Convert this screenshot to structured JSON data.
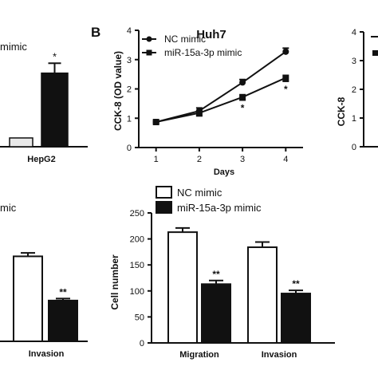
{
  "panel_letters": {
    "b": "B"
  },
  "cut_text": {
    "mimic_top": "mimic",
    "mimic_mid": "mic"
  },
  "chart_data": [
    {
      "id": "a-hepg2-fragment",
      "type": "bar",
      "categories": [
        "HepG2"
      ],
      "series": [
        {
          "name": "NC mimic",
          "values": [
            0.16
          ],
          "fill": "#e9e9e9"
        },
        {
          "name": "miR-15a-3p mimic",
          "values": [
            1.34
          ],
          "error": [
            0.18
          ],
          "fill": "#111111"
        }
      ],
      "ymax": 1.8,
      "annotations": [
        "*"
      ]
    },
    {
      "id": "b-huh7-cck8",
      "type": "line",
      "title": "Huh7",
      "xlabel": "Days",
      "ylabel": "CCK-8 (OD value)",
      "x": [
        1,
        2,
        3,
        4
      ],
      "xlim": [
        0.6,
        4.4
      ],
      "ylim": [
        0,
        4
      ],
      "yticks": [
        "0",
        "1",
        "2",
        "3",
        "4"
      ],
      "series": [
        {
          "name": "NC mimic",
          "marker": "circle",
          "values": [
            0.87,
            1.25,
            2.22,
            3.27
          ],
          "error": [
            0.04,
            0.1,
            0.1,
            0.12
          ]
        },
        {
          "name": "miR-15a-3p mimic",
          "marker": "square",
          "values": [
            0.87,
            1.18,
            1.72,
            2.38
          ],
          "error": [
            0.04,
            0.1,
            0.1,
            0.12
          ]
        }
      ],
      "annotations": [
        {
          "x": 3,
          "text": "*"
        },
        {
          "x": 4,
          "text": "*"
        }
      ]
    },
    {
      "id": "c-right-fragment",
      "type": "line",
      "ylabel": "CCK-8",
      "yticks": [
        "0",
        "1",
        "2",
        "3",
        "4"
      ]
    },
    {
      "id": "d-invasion-fragment",
      "type": "bar",
      "xlabel": "Invasion",
      "series": [
        {
          "name": "NC mimic",
          "values": [
            173
          ],
          "error": [
            7
          ],
          "fill": "#ffffff"
        },
        {
          "name": "miR-15a-3p mimic",
          "values": [
            83
          ],
          "error": [
            4
          ],
          "fill": "#111111"
        }
      ],
      "ylim": [
        0,
        250
      ],
      "annotations": [
        "**"
      ]
    },
    {
      "id": "e-cell-number",
      "type": "bar",
      "ylabel": "Cell number",
      "categories": [
        "Migration",
        "Invasion"
      ],
      "ylim": [
        0,
        250
      ],
      "yticks": [
        "0",
        "50",
        "100",
        "150",
        "200",
        "250"
      ],
      "legend": "top-left",
      "series": [
        {
          "name": "NC mimic",
          "fill": "#ffffff",
          "values": [
            213,
            184
          ],
          "error": [
            8,
            10
          ]
        },
        {
          "name": "miR-15a-3p mimic",
          "fill": "#111111",
          "values": [
            113,
            95
          ],
          "error": [
            7,
            6
          ]
        }
      ],
      "annotations": [
        {
          "category": "Migration",
          "text": "**"
        },
        {
          "category": "Invasion",
          "text": "**"
        }
      ]
    }
  ]
}
